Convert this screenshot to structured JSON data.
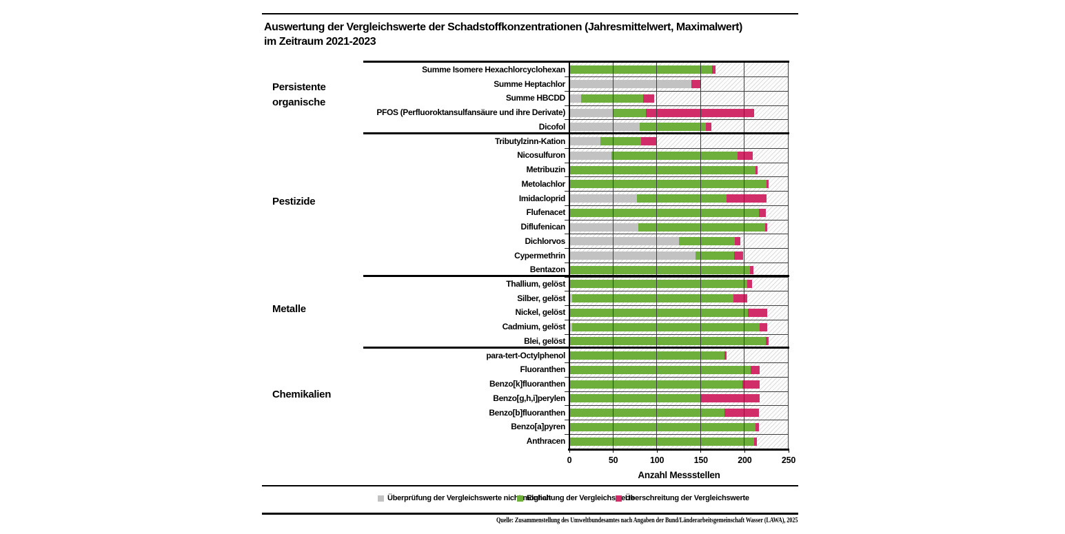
{
  "title_line1": "Auswertung der Vergleichswerte der Schadstoffkonzentrationen (Jahresmittelwert, Maximalwert)",
  "title_line2": "im Zeitraum 2021-2023",
  "axis": {
    "label": "Anzahl Messstellen",
    "ticks": [
      0,
      50,
      100,
      150,
      200,
      250
    ]
  },
  "legend": [
    {
      "label": "Überprüfung der Vergleichswerte nicht möglich",
      "color": "#C2C2C2"
    },
    {
      "label": "Einhaltung der Vergleichswerte",
      "color": "#6EAF3C"
    },
    {
      "label": "Überschreitung der Vergleichswerte",
      "color": "#D02D69"
    }
  ],
  "source": "Quelle: Zusammenstellung des Umweltbundesamtes nach Angaben der Bund/Länderarbeitsgemeinschaft Wasser (LAWA), 2025",
  "chart_data": {
    "type": "bar",
    "orientation": "horizontal",
    "stacked": true,
    "title": "Auswertung der Vergleichswerte der Schadstoffkonzentrationen (Jahresmittelwert, Maximalwert) im Zeitraum 2021-2023",
    "xlabel": "Anzahl Messstellen",
    "xlim": [
      0,
      250
    ],
    "grid": true,
    "legend_position": "bottom",
    "series_names": [
      "Überprüfung der Vergleichswerte nicht möglich",
      "Einhaltung der Vergleichswerte",
      "Überschreitung der Vergleichswerte"
    ],
    "series_colors": [
      "#C2C2C2",
      "#6EAF3C",
      "#D02D69"
    ],
    "groups": [
      {
        "name": "Persistente organische",
        "rows": [
          {
            "label": "Summe Isomere Hexachlorcyclohexan",
            "values": [
              0,
              163,
              4
            ]
          },
          {
            "label": "Summe Heptachlor",
            "values": [
              139,
              0,
              11
            ]
          },
          {
            "label": "Summe HBCDD",
            "values": [
              13,
              71,
              13
            ]
          },
          {
            "label": "PFOS (Perfluoroktansulfansäure und ihre Derivate)",
            "values": [
              50,
              37,
              124
            ]
          },
          {
            "label": "Dicofol",
            "values": [
              80,
              76,
              6
            ]
          }
        ]
      },
      {
        "name": "Pestizide",
        "rows": [
          {
            "label": "Tributylzinn-Kation",
            "values": [
              35,
              47,
              18
            ]
          },
          {
            "label": "Nicosulfuron",
            "values": [
              48,
              144,
              17
            ]
          },
          {
            "label": "Metribuzin",
            "values": [
              0,
              212,
              3
            ]
          },
          {
            "label": "Metolachlor",
            "values": [
              0,
              225,
              2
            ]
          },
          {
            "label": "Imidacloprid",
            "values": [
              77,
              102,
              46
            ]
          },
          {
            "label": "Flufenacet",
            "values": [
              0,
              216,
              8
            ]
          },
          {
            "label": "Diflufenican",
            "values": [
              79,
              144,
              3
            ]
          },
          {
            "label": "Dichlorvos",
            "values": [
              125,
              64,
              6
            ]
          },
          {
            "label": "Cypermethrin",
            "values": [
              144,
              44,
              10
            ]
          },
          {
            "label": "Bentazon",
            "values": [
              0,
              206,
              4
            ]
          }
        ]
      },
      {
        "name": "Metalle",
        "rows": [
          {
            "label": "Thallium, gelöst",
            "values": [
              0,
              203,
              5
            ]
          },
          {
            "label": "Silber, gelöst",
            "values": [
              3,
              184,
              16
            ]
          },
          {
            "label": "Nickel, gelöst",
            "values": [
              0,
              204,
              22
            ]
          },
          {
            "label": "Cadmium, gelöst",
            "values": [
              3,
              214,
              9
            ]
          },
          {
            "label": "Blei, gelöst",
            "values": [
              0,
              224,
              3
            ]
          }
        ]
      },
      {
        "name": "Chemikalien",
        "rows": [
          {
            "label": "para-tert-Octylphenol",
            "values": [
              0,
              177,
              2
            ]
          },
          {
            "label": "Fluoranthen",
            "values": [
              0,
              207,
              10
            ]
          },
          {
            "label": "Benzo[k]fluoranthen",
            "values": [
              0,
              197,
              20
            ]
          },
          {
            "label": "Benzo[g,h,i]perylen",
            "values": [
              0,
              150,
              67
            ]
          },
          {
            "label": "Benzo[b]fluoranthen",
            "values": [
              0,
              177,
              39
            ]
          },
          {
            "label": "Benzo[a]pyren",
            "values": [
              0,
              212,
              4
            ]
          },
          {
            "label": "Anthracen",
            "values": [
              0,
              211,
              3
            ]
          }
        ]
      }
    ]
  }
}
